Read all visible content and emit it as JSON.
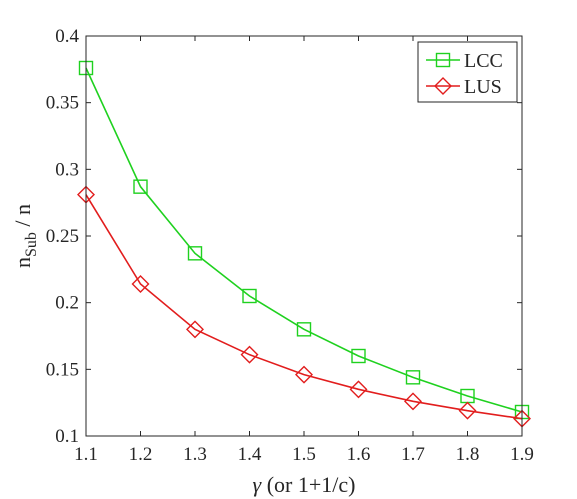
{
  "chart_data": {
    "type": "line",
    "xlabel_symbol": "γ",
    "xlabel_rest": " (or 1+1/c)",
    "ylabel_main": "n",
    "ylabel_sub": "Sub",
    "ylabel_tail": " / n",
    "xlim": [
      1.1,
      1.9
    ],
    "ylim": [
      0.1,
      0.4
    ],
    "x_ticks": [
      1.1,
      1.2,
      1.3,
      1.4,
      1.5,
      1.6,
      1.7,
      1.8,
      1.9
    ],
    "x_tick_labels": [
      "1.1",
      "1.2",
      "1.3",
      "1.4",
      "1.5",
      "1.6",
      "1.7",
      "1.8",
      "1.9"
    ],
    "y_ticks": [
      0.1,
      0.15,
      0.2,
      0.25,
      0.3,
      0.35,
      0.4
    ],
    "y_tick_labels": [
      "0.1",
      "0.15",
      "0.2",
      "0.25",
      "0.3",
      "0.35",
      "0.4"
    ],
    "grid": false,
    "legend_position": "top-right",
    "x": [
      1.1,
      1.2,
      1.3,
      1.4,
      1.5,
      1.6,
      1.7,
      1.8,
      1.9
    ],
    "series": [
      {
        "name": "LCC",
        "marker": "square",
        "color": "#1fd11f",
        "values": [
          0.376,
          0.287,
          0.237,
          0.205,
          0.18,
          0.16,
          0.144,
          0.13,
          0.118
        ]
      },
      {
        "name": "LUS",
        "marker": "diamond",
        "color": "#e21d1d",
        "values": [
          0.281,
          0.214,
          0.18,
          0.161,
          0.146,
          0.135,
          0.126,
          0.119,
          0.113
        ]
      }
    ]
  }
}
